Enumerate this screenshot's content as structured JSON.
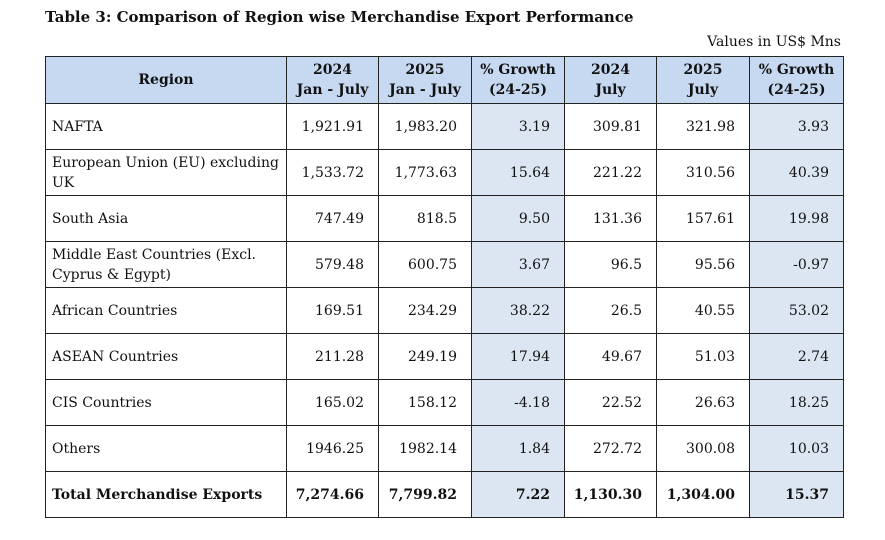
{
  "title": "Table 3: Comparison of Region wise Merchandise Export Performance",
  "units": "Values in US$ Mns",
  "colors": {
    "header_bg": "#c6d9f1",
    "growth_bg": "#dce6f2",
    "border": "#222222"
  },
  "headers": [
    {
      "line1": "Region",
      "line2": ""
    },
    {
      "line1": "2024",
      "line2": "Jan - July"
    },
    {
      "line1": "2025",
      "line2": "Jan - July"
    },
    {
      "line1": "% Growth",
      "line2": "(24-25)"
    },
    {
      "line1": "2024",
      "line2": "July"
    },
    {
      "line1": "2025",
      "line2": "July"
    },
    {
      "line1": "% Growth",
      "line2": "(24-25)"
    }
  ],
  "rows": [
    {
      "region": "NAFTA",
      "jj2024": "1,921.91",
      "jj2025": "1,983.20",
      "jj_growth": "3.19",
      "jul2024": "309.81",
      "jul2025": "321.98",
      "jul_growth": "3.93"
    },
    {
      "region": "European Union (EU) excluding UK",
      "jj2024": "1,533.72",
      "jj2025": "1,773.63",
      "jj_growth": "15.64",
      "jul2024": "221.22",
      "jul2025": "310.56",
      "jul_growth": "40.39"
    },
    {
      "region": "South Asia",
      "jj2024": "747.49",
      "jj2025": "818.5",
      "jj_growth": "9.50",
      "jul2024": "131.36",
      "jul2025": "157.61",
      "jul_growth": "19.98"
    },
    {
      "region": "Middle East Countries (Excl. Cyprus & Egypt)",
      "jj2024": "579.48",
      "jj2025": "600.75",
      "jj_growth": "3.67",
      "jul2024": "96.5",
      "jul2025": "95.56",
      "jul_growth": "-0.97"
    },
    {
      "region": "African Countries",
      "jj2024": "169.51",
      "jj2025": "234.29",
      "jj_growth": "38.22",
      "jul2024": "26.5",
      "jul2025": "40.55",
      "jul_growth": "53.02"
    },
    {
      "region": "ASEAN Countries",
      "jj2024": "211.28",
      "jj2025": "249.19",
      "jj_growth": "17.94",
      "jul2024": "49.67",
      "jul2025": "51.03",
      "jul_growth": "2.74"
    },
    {
      "region": "CIS Countries",
      "jj2024": "165.02",
      "jj2025": "158.12",
      "jj_growth": "-4.18",
      "jul2024": "22.52",
      "jul2025": "26.63",
      "jul_growth": "18.25"
    },
    {
      "region": "Others",
      "jj2024": "1946.25",
      "jj2025": "1982.14",
      "jj_growth": "1.84",
      "jul2024": "272.72",
      "jul2025": "300.08",
      "jul_growth": "10.03"
    },
    {
      "region": "Total Merchandise Exports",
      "jj2024": "7,274.66",
      "jj2025": "7,799.82",
      "jj_growth": "7.22",
      "jul2024": "1,130.30",
      "jul2025": "1,304.00",
      "jul_growth": "15.37"
    }
  ]
}
